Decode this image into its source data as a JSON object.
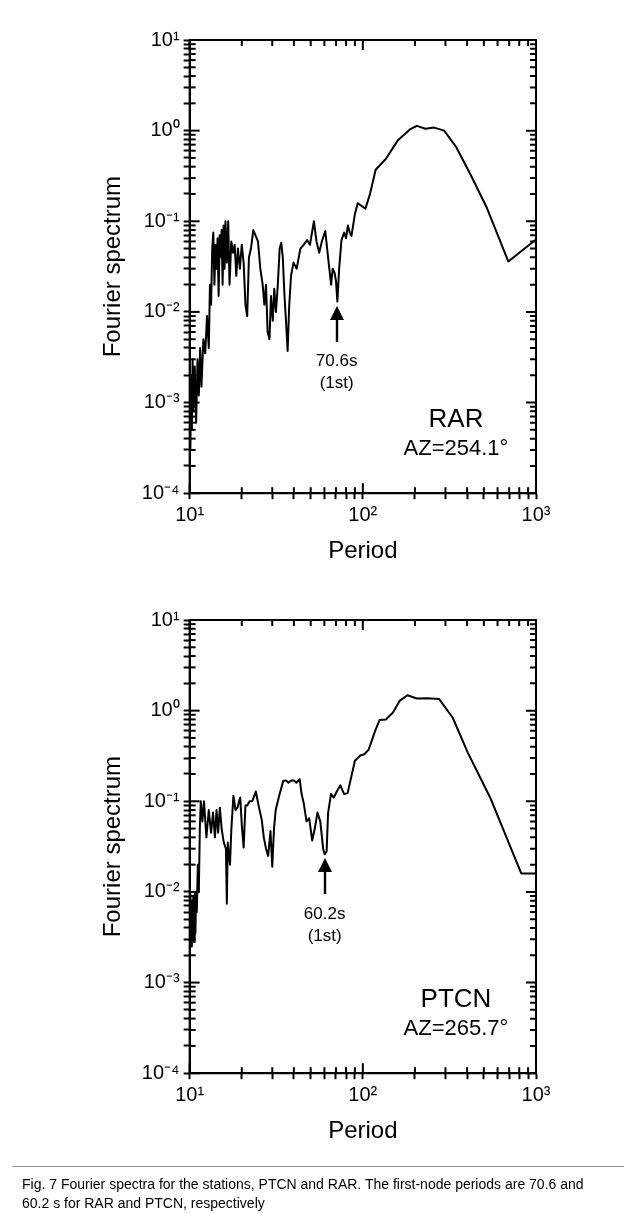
{
  "chart_data": [
    {
      "type": "line",
      "xlabel": "Period",
      "ylabel": "Fourier spectrum",
      "log": "xy",
      "grid": false,
      "legend": false,
      "marker": "none",
      "line_style": "solid",
      "xlim": [
        10,
        1000
      ],
      "ylim": [
        0.0001,
        10
      ],
      "xticks": [
        {
          "value": 10,
          "label": "10¹"
        },
        {
          "value": 20,
          "label": null
        },
        {
          "value": 30,
          "label": null
        },
        {
          "value": 40,
          "label": null
        },
        {
          "value": 50,
          "label": null
        },
        {
          "value": 60,
          "label": null
        },
        {
          "value": 70,
          "label": null
        },
        {
          "value": 80,
          "label": null
        },
        {
          "value": 90,
          "label": null
        },
        {
          "value": 100,
          "label": "10²"
        },
        {
          "value": 200,
          "label": null
        },
        {
          "value": 300,
          "label": null
        },
        {
          "value": 400,
          "label": null
        },
        {
          "value": 500,
          "label": null
        },
        {
          "value": 600,
          "label": null
        },
        {
          "value": 700,
          "label": null
        },
        {
          "value": 800,
          "label": null
        },
        {
          "value": 900,
          "label": null
        },
        {
          "value": 1000,
          "label": "10³"
        }
      ],
      "yticks": [
        {
          "value": 0.0001,
          "label": "10⁻⁴"
        },
        {
          "value": 0.0002,
          "label": null
        },
        {
          "value": 0.0003,
          "label": null
        },
        {
          "value": 0.0004,
          "label": null
        },
        {
          "value": 0.0005,
          "label": null
        },
        {
          "value": 0.0006,
          "label": null
        },
        {
          "value": 0.0007,
          "label": null
        },
        {
          "value": 0.0008,
          "label": null
        },
        {
          "value": 0.0009,
          "label": null
        },
        {
          "value": 0.001,
          "label": "10⁻³"
        },
        {
          "value": 0.002,
          "label": null
        },
        {
          "value": 0.003,
          "label": null
        },
        {
          "value": 0.004,
          "label": null
        },
        {
          "value": 0.005,
          "label": null
        },
        {
          "value": 0.006,
          "label": null
        },
        {
          "value": 0.007,
          "label": null
        },
        {
          "value": 0.008,
          "label": null
        },
        {
          "value": 0.009,
          "label": null
        },
        {
          "value": 0.01,
          "label": "10⁻²"
        },
        {
          "value": 0.02,
          "label": null
        },
        {
          "value": 0.03,
          "label": null
        },
        {
          "value": 0.04,
          "label": null
        },
        {
          "value": 0.05,
          "label": null
        },
        {
          "value": 0.06,
          "label": null
        },
        {
          "value": 0.07,
          "label": null
        },
        {
          "value": 0.08,
          "label": null
        },
        {
          "value": 0.09,
          "label": null
        },
        {
          "value": 0.1,
          "label": "10⁻¹"
        },
        {
          "value": 0.2,
          "label": null
        },
        {
          "value": 0.3,
          "label": null
        },
        {
          "value": 0.4,
          "label": null
        },
        {
          "value": 0.5,
          "label": null
        },
        {
          "value": 0.6,
          "label": null
        },
        {
          "value": 0.7,
          "label": null
        },
        {
          "value": 0.8,
          "label": null
        },
        {
          "value": 0.9,
          "label": null
        },
        {
          "value": 1,
          "label": "10⁰"
        },
        {
          "value": 2,
          "label": null
        },
        {
          "value": 3,
          "label": null
        },
        {
          "value": 4,
          "label": null
        },
        {
          "value": 5,
          "label": null
        },
        {
          "value": 6,
          "label": null
        },
        {
          "value": 7,
          "label": null
        },
        {
          "value": 8,
          "label": null
        },
        {
          "value": 9,
          "label": null
        },
        {
          "value": 10,
          "label": "10¹"
        }
      ],
      "series": [
        {
          "color": "#000000",
          "x": [
            10.0,
            10.1,
            10.2,
            10.3,
            10.4,
            10.5,
            10.7,
            10.9,
            11.1,
            11.3,
            11.5,
            11.7,
            12.0,
            12.3,
            12.6,
            12.9,
            13.1,
            13.3,
            13.5,
            13.7,
            13.9,
            14.1,
            14.3,
            14.5,
            14.7,
            14.9,
            15.1,
            15.3,
            15.5,
            15.7,
            15.9,
            16.1,
            16.4,
            16.7,
            17.0,
            17.4,
            17.8,
            18.2,
            18.6,
            19.0,
            19.5,
            20.0,
            20.5,
            21.0,
            21.5,
            22.0,
            22.6,
            23.3,
            24.0,
            24.8,
            25.6,
            26.4,
            27.0,
            27.6,
            28.2,
            28.9,
            29.5,
            30.2,
            30.8,
            31.5,
            32.3,
            33.1,
            33.8,
            34.5,
            35.3,
            36.0,
            36.8,
            37.6,
            38.5,
            39.8,
            41.5,
            43.6,
            45.5,
            47.7,
            49.5,
            52.2,
            54.0,
            56.0,
            58.0,
            60.7,
            63.0,
            65.6,
            67.0,
            68.7,
            70.0,
            71.3,
            73.0,
            75.3,
            78.0,
            80.0,
            82.0,
            84.0,
            86.0,
            90.0,
            93.5,
            103.5,
            110,
            118.6,
            136,
            160,
            187,
            205,
            230,
            258,
            295,
            346,
            425,
            521,
            692,
            1000
          ],
          "values": [
            0.0008,
            0.0003,
            0.002,
            0.0005,
            0.003,
            0.0008,
            0.0025,
            0.0006,
            0.003,
            0.0012,
            0.004,
            0.0015,
            0.005,
            0.0035,
            0.009,
            0.004,
            0.02,
            0.012,
            0.05,
            0.075,
            0.02,
            0.055,
            0.03,
            0.065,
            0.015,
            0.07,
            0.04,
            0.08,
            0.02,
            0.09,
            0.03,
            0.1,
            0.035,
            0.1,
            0.02,
            0.06,
            0.045,
            0.055,
            0.025,
            0.05,
            0.03,
            0.055,
            0.035,
            0.012,
            0.009,
            0.04,
            0.05,
            0.08,
            0.07,
            0.06,
            0.03,
            0.02,
            0.012,
            0.02,
            0.006,
            0.005,
            0.015,
            0.008,
            0.018,
            0.01,
            0.02,
            0.05,
            0.058,
            0.04,
            0.015,
            0.008,
            0.0037,
            0.012,
            0.025,
            0.035,
            0.03,
            0.05,
            0.055,
            0.062,
            0.055,
            0.1,
            0.06,
            0.045,
            0.06,
            0.078,
            0.04,
            0.02,
            0.03,
            0.027,
            0.022,
            0.013,
            0.03,
            0.062,
            0.075,
            0.065,
            0.09,
            0.075,
            0.069,
            0.12,
            0.158,
            0.138,
            0.2,
            0.37,
            0.49,
            0.79,
            1.03,
            1.13,
            1.05,
            1.08,
            1.0,
            0.66,
            0.31,
            0.14,
            0.036,
            0.063
          ]
        }
      ],
      "annotations": [
        {
          "text": "70.6s\n(1st)",
          "x": 70.6,
          "y": 0.013
        },
        "RAR",
        "AZ=254.1°"
      ]
    },
    {
      "type": "line",
      "xlabel": "Period",
      "ylabel": "Fourier spectrum",
      "log": "xy",
      "grid": false,
      "legend": false,
      "marker": "none",
      "line_style": "solid",
      "xlim": [
        10,
        1000
      ],
      "ylim": [
        0.0001,
        10
      ],
      "xticks": [
        {
          "value": 10,
          "label": "10¹"
        },
        {
          "value": 20,
          "label": null
        },
        {
          "value": 30,
          "label": null
        },
        {
          "value": 40,
          "label": null
        },
        {
          "value": 50,
          "label": null
        },
        {
          "value": 60,
          "label": null
        },
        {
          "value": 70,
          "label": null
        },
        {
          "value": 80,
          "label": null
        },
        {
          "value": 90,
          "label": null
        },
        {
          "value": 100,
          "label": "10²"
        },
        {
          "value": 200,
          "label": null
        },
        {
          "value": 300,
          "label": null
        },
        {
          "value": 400,
          "label": null
        },
        {
          "value": 500,
          "label": null
        },
        {
          "value": 600,
          "label": null
        },
        {
          "value": 700,
          "label": null
        },
        {
          "value": 800,
          "label": null
        },
        {
          "value": 900,
          "label": null
        },
        {
          "value": 1000,
          "label": "10³"
        }
      ],
      "yticks": [
        {
          "value": 0.0001,
          "label": "10⁻⁴"
        },
        {
          "value": 0.0002,
          "label": null
        },
        {
          "value": 0.0003,
          "label": null
        },
        {
          "value": 0.0004,
          "label": null
        },
        {
          "value": 0.0005,
          "label": null
        },
        {
          "value": 0.0006,
          "label": null
        },
        {
          "value": 0.0007,
          "label": null
        },
        {
          "value": 0.0008,
          "label": null
        },
        {
          "value": 0.0009,
          "label": null
        },
        {
          "value": 0.001,
          "label": "10⁻³"
        },
        {
          "value": 0.002,
          "label": null
        },
        {
          "value": 0.003,
          "label": null
        },
        {
          "value": 0.004,
          "label": null
        },
        {
          "value": 0.005,
          "label": null
        },
        {
          "value": 0.006,
          "label": null
        },
        {
          "value": 0.007,
          "label": null
        },
        {
          "value": 0.008,
          "label": null
        },
        {
          "value": 0.009,
          "label": null
        },
        {
          "value": 0.01,
          "label": "10⁻²"
        },
        {
          "value": 0.02,
          "label": null
        },
        {
          "value": 0.03,
          "label": null
        },
        {
          "value": 0.04,
          "label": null
        },
        {
          "value": 0.05,
          "label": null
        },
        {
          "value": 0.06,
          "label": null
        },
        {
          "value": 0.07,
          "label": null
        },
        {
          "value": 0.08,
          "label": null
        },
        {
          "value": 0.09,
          "label": null
        },
        {
          "value": 0.1,
          "label": "10⁻¹"
        },
        {
          "value": 0.2,
          "label": null
        },
        {
          "value": 0.3,
          "label": null
        },
        {
          "value": 0.4,
          "label": null
        },
        {
          "value": 0.5,
          "label": null
        },
        {
          "value": 0.6,
          "label": null
        },
        {
          "value": 0.7,
          "label": null
        },
        {
          "value": 0.8,
          "label": null
        },
        {
          "value": 0.9,
          "label": null
        },
        {
          "value": 1,
          "label": "10⁰"
        },
        {
          "value": 2,
          "label": null
        },
        {
          "value": 3,
          "label": null
        },
        {
          "value": 4,
          "label": null
        },
        {
          "value": 5,
          "label": null
        },
        {
          "value": 6,
          "label": null
        },
        {
          "value": 7,
          "label": null
        },
        {
          "value": 8,
          "label": null
        },
        {
          "value": 9,
          "label": null
        },
        {
          "value": 10,
          "label": "10¹"
        }
      ],
      "series": [
        {
          "color": "#000000",
          "x": [
            10.0,
            10.1,
            10.2,
            10.3,
            10.4,
            10.5,
            10.6,
            10.7,
            10.8,
            10.9,
            11.0,
            11.15,
            11.3,
            11.45,
            11.6,
            11.85,
            12.1,
            12.5,
            12.9,
            13.3,
            13.65,
            14.0,
            14.3,
            14.6,
            14.95,
            15.3,
            15.75,
            16.2,
            16.4,
            16.6,
            17.1,
            17.4,
            17.9,
            18.4,
            18.9,
            19.3,
            19.6,
            20.0,
            20.5,
            21.0,
            21.5,
            22.2,
            23.0,
            24.1,
            25.0,
            26.1,
            26.8,
            27.6,
            28.4,
            29.3,
            30.0,
            30.7,
            31.4,
            32.8,
            34.7,
            36.0,
            37.2,
            38.6,
            40.0,
            41.3,
            43.2,
            44.3,
            45.6,
            47.3,
            49.0,
            51.0,
            52.8,
            54.7,
            56.8,
            59.0,
            60.2,
            61.8,
            63.0,
            65.5,
            68.0,
            71.0,
            74.2,
            78.0,
            81.7,
            86.0,
            90.0,
            96.6,
            102,
            108,
            117.5,
            125,
            136,
            149,
            163,
            181,
            205,
            235,
            276,
            330,
            405,
            546,
            822,
            1000
          ],
          "values": [
            0.005,
            0.0095,
            0.0025,
            0.008,
            0.003,
            0.009,
            0.0028,
            0.0095,
            0.0035,
            0.0095,
            0.006,
            0.02,
            0.01,
            0.05,
            0.1,
            0.06,
            0.1,
            0.04,
            0.08,
            0.045,
            0.075,
            0.04,
            0.08,
            0.045,
            0.085,
            0.05,
            0.035,
            0.03,
            0.0074,
            0.035,
            0.02,
            0.048,
            0.115,
            0.08,
            0.085,
            0.1,
            0.11,
            0.055,
            0.031,
            0.09,
            0.09,
            0.1,
            0.1,
            0.128,
            0.09,
            0.062,
            0.04,
            0.03,
            0.025,
            0.047,
            0.019,
            0.05,
            0.08,
            0.113,
            0.167,
            0.17,
            0.16,
            0.17,
            0.17,
            0.16,
            0.175,
            0.12,
            0.095,
            0.06,
            0.065,
            0.037,
            0.05,
            0.075,
            0.06,
            0.03,
            0.026,
            0.028,
            0.074,
            0.12,
            0.11,
            0.13,
            0.15,
            0.12,
            0.123,
            0.19,
            0.28,
            0.32,
            0.33,
            0.37,
            0.59,
            0.79,
            0.8,
            0.95,
            1.28,
            1.48,
            1.36,
            1.37,
            1.34,
            0.84,
            0.34,
            0.108,
            0.016,
            0.016
          ]
        }
      ],
      "annotations": [
        {
          "text": "60.2s\n(1st)",
          "x": 60.2,
          "y": 0.026
        },
        "PTCN",
        "AZ=265.7°",
        "Fig. 7  Fourier spectra for the stations, PTCN and RAR. The first-node periods are 70.6 and 60.2 s for RAR and PTCN, respectively"
      ]
    }
  ]
}
